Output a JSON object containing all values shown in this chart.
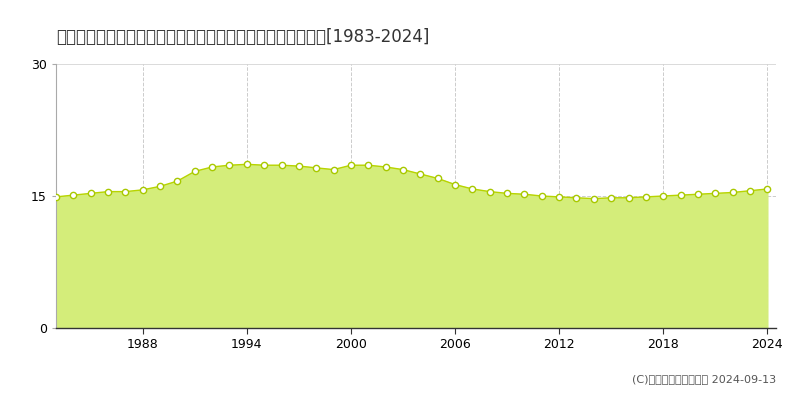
{
  "title": "広島県福山市大門町２丁目６２番２外　地価公示　地価推移[1983-2024]",
  "years": [
    1983,
    1984,
    1985,
    1986,
    1987,
    1988,
    1989,
    1990,
    1991,
    1992,
    1993,
    1994,
    1995,
    1996,
    1997,
    1998,
    1999,
    2000,
    2001,
    2002,
    2003,
    2004,
    2005,
    2006,
    2007,
    2008,
    2009,
    2010,
    2011,
    2012,
    2013,
    2014,
    2015,
    2016,
    2017,
    2018,
    2019,
    2020,
    2021,
    2022,
    2023,
    2024
  ],
  "values": [
    14.9,
    15.1,
    15.3,
    15.5,
    15.5,
    15.7,
    16.1,
    16.7,
    17.8,
    18.3,
    18.5,
    18.6,
    18.5,
    18.5,
    18.4,
    18.2,
    18.0,
    18.5,
    18.5,
    18.3,
    18.0,
    17.5,
    17.0,
    16.3,
    15.8,
    15.5,
    15.3,
    15.2,
    15.0,
    14.9,
    14.8,
    14.7,
    14.8,
    14.8,
    14.9,
    15.0,
    15.1,
    15.2,
    15.3,
    15.4,
    15.6,
    15.8
  ],
  "fill_color": "#d4ed7a",
  "line_color": "#b8d400",
  "marker_facecolor": "#ffffff",
  "marker_edgecolor": "#a8c800",
  "marker_size": 4.5,
  "marker_linewidth": 1.0,
  "ylim": [
    0,
    30
  ],
  "yticks": [
    0,
    15,
    30
  ],
  "xlim": [
    1983,
    2024.5
  ],
  "xticks": [
    1988,
    1994,
    2000,
    2006,
    2012,
    2018,
    2024
  ],
  "grid_color": "#cccccc",
  "bg_color": "#ffffff",
  "legend_square_color": "#c8e040",
  "copyright_text": "(C)土地価格ドットコム 2024-09-13",
  "title_fontsize": 12,
  "tick_fontsize": 9,
  "legend_fontsize": 9,
  "copyright_fontsize": 8
}
